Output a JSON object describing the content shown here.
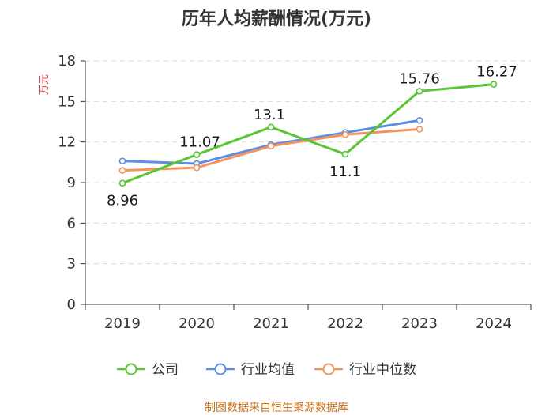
{
  "title": "历年人均薪酬情况(万元)",
  "source": "制图数据来自恒生聚源数据库",
  "chart_data": {
    "type": "line",
    "categories": [
      "2019",
      "2020",
      "2021",
      "2022",
      "2023",
      "2024"
    ],
    "ylabel": "万元",
    "ylim": [
      0,
      18
    ],
    "yticks": [
      0,
      3,
      6,
      9,
      12,
      15,
      18
    ],
    "grid": true,
    "legend_position": "bottom",
    "series": [
      {
        "name": "公司",
        "color": "#5ac634",
        "values": [
          8.96,
          11.07,
          13.1,
          11.1,
          15.76,
          16.27
        ],
        "labels": [
          "8.96",
          "11.07",
          "13.1",
          "11.1",
          "15.76",
          "16.27"
        ]
      },
      {
        "name": "行业均值",
        "color": "#5b8ee6",
        "values": [
          10.6,
          10.4,
          11.8,
          12.7,
          13.6,
          null
        ]
      },
      {
        "name": "行业中位数",
        "color": "#f5935c",
        "values": [
          9.9,
          10.1,
          11.7,
          12.55,
          12.95,
          null
        ]
      }
    ]
  }
}
